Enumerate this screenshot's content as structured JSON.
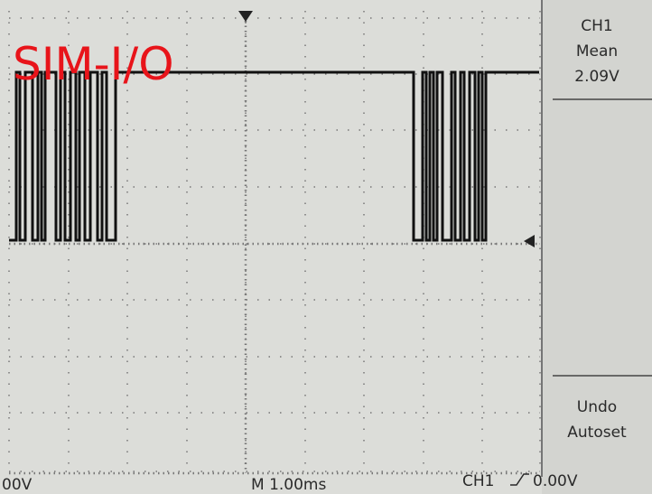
{
  "label": "SIM-I/O",
  "side_panel": {
    "channel": "CH1",
    "measure": "Mean",
    "value": "2.09V",
    "button": [
      "Undo",
      "Autoset"
    ]
  },
  "status_bar": {
    "left": "00V",
    "timebase": "M 1.00ms",
    "trigger_channel": "CH1",
    "trigger_level": "0.00V"
  }
}
